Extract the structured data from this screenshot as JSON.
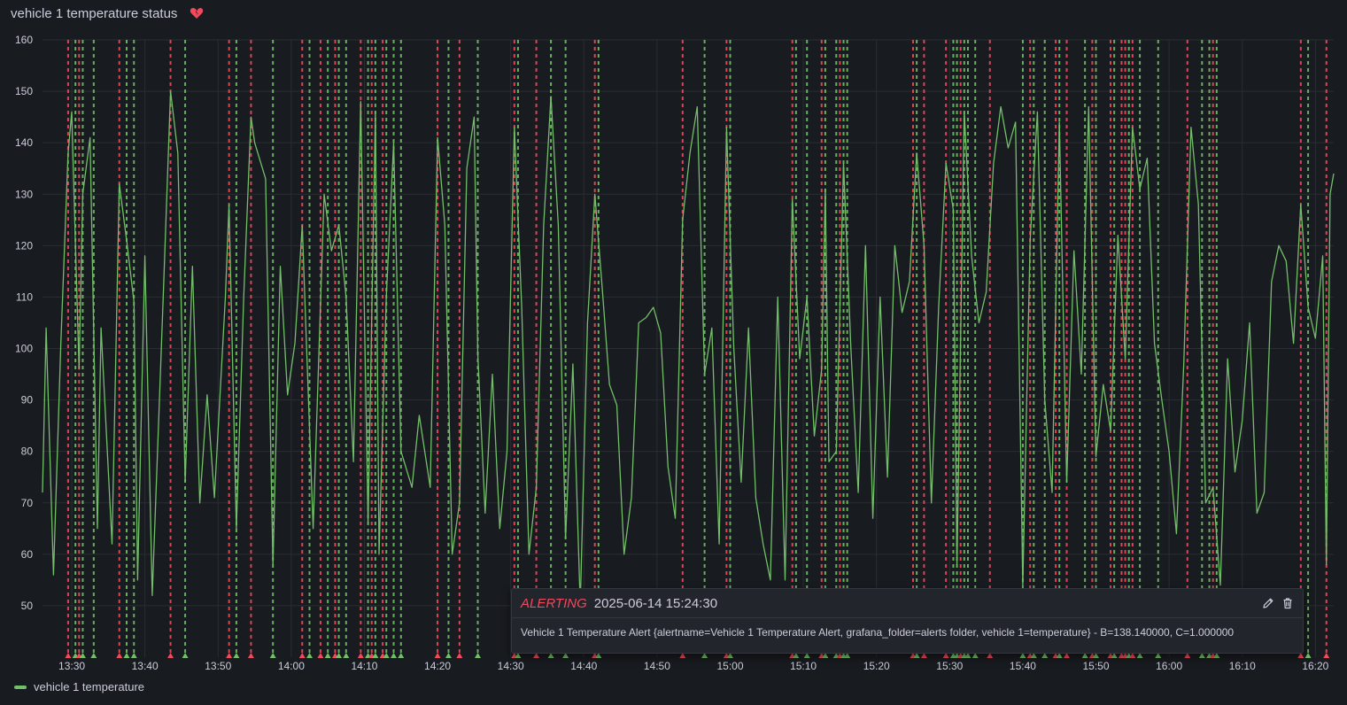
{
  "panel": {
    "title": "vehicle 1 temperature status",
    "status_icon": "broken-heart-icon",
    "status_color": "#f2495c"
  },
  "colors": {
    "series": "#73bf69",
    "alerting": "#f2495c",
    "normal": "#73bf69",
    "grid": "#2a2d33"
  },
  "legend": {
    "label": "vehicle 1 temperature"
  },
  "tooltip": {
    "state": "ALERTING",
    "time": "2025-06-14 15:24:30",
    "text": "Vehicle 1 Temperature Alert {alertname=Vehicle 1 Temperature Alert, grafana_folder=alerts folder, vehicle 1=temperature} - B=138.140000, C=1.000000",
    "edit_icon": "pencil-icon",
    "delete_icon": "trash-icon"
  },
  "chart_data": {
    "type": "line",
    "title": "vehicle 1 temperature status",
    "ylim": [
      40,
      160
    ],
    "yticks": [
      50,
      60,
      70,
      80,
      90,
      100,
      110,
      120,
      130,
      140,
      150,
      160
    ],
    "xlim": [
      "13:26:00",
      "16:22:30"
    ],
    "xticks": [
      "13:30",
      "13:40",
      "13:50",
      "14:00",
      "14:10",
      "14:20",
      "14:30",
      "14:40",
      "14:50",
      "15:00",
      "15:10",
      "15:20",
      "15:30",
      "15:40",
      "15:50",
      "16:00",
      "16:10",
      "16:20"
    ],
    "grid": true,
    "legend_position": "bottom-left",
    "series": [
      {
        "name": "vehicle 1 temperature",
        "color": "#73bf69",
        "values": [
          [
            "13:26:00",
            72
          ],
          [
            "13:26:30",
            104
          ],
          [
            "13:27:30",
            56
          ],
          [
            "13:28:30",
            101
          ],
          [
            "13:29:30",
            138
          ],
          [
            "13:30:00",
            146
          ],
          [
            "13:30:30",
            120
          ],
          [
            "13:31:00",
            96
          ],
          [
            "13:31:30",
            130
          ],
          [
            "13:32:30",
            141
          ],
          [
            "13:33:30",
            65
          ],
          [
            "13:34:00",
            104
          ],
          [
            "13:35:30",
            62
          ],
          [
            "13:36:30",
            132
          ],
          [
            "13:37:30",
            121
          ],
          [
            "13:38:30",
            109
          ],
          [
            "13:39:00",
            55
          ],
          [
            "13:40:00",
            118
          ],
          [
            "13:41:00",
            52
          ],
          [
            "13:42:30",
            110
          ],
          [
            "13:43:30",
            150
          ],
          [
            "13:44:30",
            138
          ],
          [
            "13:45:30",
            74
          ],
          [
            "13:46:30",
            116
          ],
          [
            "13:47:30",
            70
          ],
          [
            "13:48:30",
            91
          ],
          [
            "13:49:30",
            71
          ],
          [
            "13:51:00",
            110
          ],
          [
            "13:51:30",
            128
          ],
          [
            "13:52:30",
            65
          ],
          [
            "13:53:30",
            110
          ],
          [
            "13:54:30",
            145
          ],
          [
            "13:55:00",
            140
          ],
          [
            "13:56:30",
            133
          ],
          [
            "13:57:30",
            58
          ],
          [
            "13:58:30",
            116
          ],
          [
            "13:59:30",
            91
          ],
          [
            "14:00:30",
            101
          ],
          [
            "14:01:30",
            124
          ],
          [
            "14:02:00",
            104
          ],
          [
            "14:03:00",
            65
          ],
          [
            "14:04:30",
            130
          ],
          [
            "14:05:30",
            119
          ],
          [
            "14:06:30",
            124
          ],
          [
            "14:07:30",
            110
          ],
          [
            "14:08:30",
            78
          ],
          [
            "14:09:30",
            148
          ],
          [
            "14:10:30",
            66
          ],
          [
            "14:11:30",
            146
          ],
          [
            "14:12:00",
            60
          ],
          [
            "14:13:00",
            110
          ],
          [
            "14:14:00",
            140
          ],
          [
            "14:15:00",
            80
          ],
          [
            "14:16:30",
            73
          ],
          [
            "14:17:30",
            87
          ],
          [
            "14:19:00",
            73
          ],
          [
            "14:20:00",
            141
          ],
          [
            "14:21:00",
            124
          ],
          [
            "14:22:00",
            60
          ],
          [
            "14:23:00",
            70
          ],
          [
            "14:24:00",
            135
          ],
          [
            "14:25:00",
            145
          ],
          [
            "14:25:30",
            99
          ],
          [
            "14:26:30",
            68
          ],
          [
            "14:27:30",
            95
          ],
          [
            "14:28:30",
            65
          ],
          [
            "14:29:30",
            80
          ],
          [
            "14:30:30",
            143
          ],
          [
            "14:31:30",
            108
          ],
          [
            "14:32:30",
            60
          ],
          [
            "14:33:30",
            73
          ],
          [
            "14:34:30",
            124
          ],
          [
            "14:35:30",
            149
          ],
          [
            "14:36:30",
            124
          ],
          [
            "14:37:30",
            63
          ],
          [
            "14:38:30",
            97
          ],
          [
            "14:39:30",
            50
          ],
          [
            "14:40:30",
            105
          ],
          [
            "14:41:30",
            130
          ],
          [
            "14:42:30",
            112
          ],
          [
            "14:43:30",
            93
          ],
          [
            "14:44:30",
            89
          ],
          [
            "14:45:30",
            60
          ],
          [
            "14:46:30",
            71
          ],
          [
            "14:47:30",
            105
          ],
          [
            "14:48:30",
            106
          ],
          [
            "14:49:30",
            108
          ],
          [
            "14:50:30",
            103
          ],
          [
            "14:51:30",
            77
          ],
          [
            "14:52:30",
            67
          ],
          [
            "14:53:30",
            125
          ],
          [
            "14:54:30",
            138
          ],
          [
            "14:55:30",
            147
          ],
          [
            "14:56:30",
            95
          ],
          [
            "14:57:30",
            104
          ],
          [
            "14:58:30",
            62
          ],
          [
            "14:59:30",
            143
          ],
          [
            "15:00:30",
            100
          ],
          [
            "15:01:30",
            74
          ],
          [
            "15:02:30",
            104
          ],
          [
            "15:03:30",
            71
          ],
          [
            "15:04:30",
            62
          ],
          [
            "15:05:30",
            55
          ],
          [
            "15:06:30",
            110
          ],
          [
            "15:07:30",
            55
          ],
          [
            "15:08:30",
            129
          ],
          [
            "15:09:30",
            98
          ],
          [
            "15:10:30",
            110
          ],
          [
            "15:11:30",
            83
          ],
          [
            "15:12:30",
            96
          ],
          [
            "15:13:00",
            131
          ],
          [
            "15:13:30",
            78
          ],
          [
            "15:14:30",
            80
          ],
          [
            "15:15:30",
            136
          ],
          [
            "15:16:30",
            100
          ],
          [
            "15:17:30",
            72
          ],
          [
            "15:18:30",
            120
          ],
          [
            "15:19:30",
            67
          ],
          [
            "15:20:30",
            110
          ],
          [
            "15:21:30",
            75
          ],
          [
            "15:22:30",
            120
          ],
          [
            "15:23:30",
            107
          ],
          [
            "15:24:30",
            113
          ],
          [
            "15:25:30",
            138
          ],
          [
            "15:26:30",
            120
          ],
          [
            "15:27:30",
            70
          ],
          [
            "15:28:30",
            108
          ],
          [
            "15:29:30",
            136
          ],
          [
            "15:30:30",
            127
          ],
          [
            "15:31:00",
            58
          ],
          [
            "15:32:00",
            146
          ],
          [
            "15:33:00",
            118
          ],
          [
            "15:34:00",
            105
          ],
          [
            "15:35:00",
            111
          ],
          [
            "15:36:00",
            136
          ],
          [
            "15:37:00",
            147
          ],
          [
            "15:38:00",
            139
          ],
          [
            "15:39:00",
            144
          ],
          [
            "15:40:00",
            54
          ],
          [
            "15:41:00",
            121
          ],
          [
            "15:42:00",
            146
          ],
          [
            "15:43:00",
            90
          ],
          [
            "15:44:00",
            72
          ],
          [
            "15:45:00",
            144
          ],
          [
            "15:46:00",
            74
          ],
          [
            "15:47:00",
            119
          ],
          [
            "15:48:00",
            95
          ],
          [
            "15:49:00",
            147
          ],
          [
            "15:50:00",
            79
          ],
          [
            "15:51:00",
            93
          ],
          [
            "15:52:00",
            84
          ],
          [
            "15:53:00",
            122
          ],
          [
            "15:54:00",
            98
          ],
          [
            "15:55:00",
            143
          ],
          [
            "15:56:00",
            131
          ],
          [
            "15:57:00",
            137
          ],
          [
            "15:58:00",
            101
          ],
          [
            "15:59:00",
            90
          ],
          [
            "16:00:00",
            80
          ],
          [
            "16:01:00",
            64
          ],
          [
            "16:02:00",
            97
          ],
          [
            "16:03:00",
            143
          ],
          [
            "16:04:00",
            128
          ],
          [
            "16:05:00",
            70
          ],
          [
            "16:06:00",
            73
          ],
          [
            "16:07:00",
            54
          ],
          [
            "16:08:00",
            98
          ],
          [
            "16:09:00",
            76
          ],
          [
            "16:10:00",
            86
          ],
          [
            "16:11:00",
            105
          ],
          [
            "16:12:00",
            68
          ],
          [
            "16:13:00",
            72
          ],
          [
            "16:14:00",
            113
          ],
          [
            "16:15:00",
            120
          ],
          [
            "16:16:00",
            117
          ],
          [
            "16:17:00",
            101
          ],
          [
            "16:18:00",
            128
          ],
          [
            "16:19:00",
            108
          ],
          [
            "16:20:00",
            102
          ],
          [
            "16:21:00",
            118
          ],
          [
            "16:21:30",
            58
          ],
          [
            "16:22:00",
            130
          ],
          [
            "16:22:30",
            134
          ]
        ]
      }
    ],
    "annotations": [
      {
        "time": "13:29:30",
        "state": "alerting"
      },
      {
        "time": "13:30:30",
        "state": "normal"
      },
      {
        "time": "13:31:00",
        "state": "alerting"
      },
      {
        "time": "13:31:30",
        "state": "normal"
      },
      {
        "time": "13:33:00",
        "state": "normal"
      },
      {
        "time": "13:36:30",
        "state": "alerting"
      },
      {
        "time": "13:37:30",
        "state": "normal"
      },
      {
        "time": "13:38:30",
        "state": "normal"
      },
      {
        "time": "13:43:30",
        "state": "alerting"
      },
      {
        "time": "13:45:30",
        "state": "normal"
      },
      {
        "time": "13:51:30",
        "state": "alerting"
      },
      {
        "time": "13:52:30",
        "state": "normal"
      },
      {
        "time": "13:54:30",
        "state": "alerting"
      },
      {
        "time": "13:57:30",
        "state": "normal"
      },
      {
        "time": "14:01:30",
        "state": "alerting"
      },
      {
        "time": "14:02:30",
        "state": "normal"
      },
      {
        "time": "14:04:00",
        "state": "alerting"
      },
      {
        "time": "14:05:00",
        "state": "normal"
      },
      {
        "time": "14:06:00",
        "state": "alerting"
      },
      {
        "time": "14:06:30",
        "state": "normal"
      },
      {
        "time": "14:07:30",
        "state": "normal"
      },
      {
        "time": "14:09:30",
        "state": "alerting"
      },
      {
        "time": "14:10:30",
        "state": "normal"
      },
      {
        "time": "14:11:00",
        "state": "alerting"
      },
      {
        "time": "14:11:30",
        "state": "normal"
      },
      {
        "time": "14:12:30",
        "state": "alerting"
      },
      {
        "time": "14:13:00",
        "state": "normal"
      },
      {
        "time": "14:14:00",
        "state": "normal"
      },
      {
        "time": "14:15:00",
        "state": "normal"
      },
      {
        "time": "14:20:00",
        "state": "alerting"
      },
      {
        "time": "14:21:30",
        "state": "normal"
      },
      {
        "time": "14:23:00",
        "state": "alerting"
      },
      {
        "time": "14:25:30",
        "state": "normal"
      },
      {
        "time": "14:30:30",
        "state": "alerting"
      },
      {
        "time": "14:31:00",
        "state": "normal"
      },
      {
        "time": "14:33:30",
        "state": "alerting"
      },
      {
        "time": "14:35:30",
        "state": "normal"
      },
      {
        "time": "14:37:30",
        "state": "normal"
      },
      {
        "time": "14:41:30",
        "state": "alerting"
      },
      {
        "time": "14:42:00",
        "state": "normal"
      },
      {
        "time": "14:53:30",
        "state": "alerting"
      },
      {
        "time": "14:56:30",
        "state": "normal"
      },
      {
        "time": "14:59:30",
        "state": "alerting"
      },
      {
        "time": "15:00:00",
        "state": "normal"
      },
      {
        "time": "15:08:30",
        "state": "alerting"
      },
      {
        "time": "15:09:00",
        "state": "normal"
      },
      {
        "time": "15:10:30",
        "state": "normal"
      },
      {
        "time": "15:12:30",
        "state": "alerting"
      },
      {
        "time": "15:13:00",
        "state": "normal"
      },
      {
        "time": "15:14:30",
        "state": "normal"
      },
      {
        "time": "15:15:00",
        "state": "alerting"
      },
      {
        "time": "15:15:30",
        "state": "normal"
      },
      {
        "time": "15:16:00",
        "state": "normal"
      },
      {
        "time": "15:25:00",
        "state": "alerting"
      },
      {
        "time": "15:25:30",
        "state": "normal"
      },
      {
        "time": "15:26:30",
        "state": "alerting"
      },
      {
        "time": "15:29:30",
        "state": "alerting"
      },
      {
        "time": "15:30:30",
        "state": "normal"
      },
      {
        "time": "15:31:00",
        "state": "normal"
      },
      {
        "time": "15:31:30",
        "state": "alerting"
      },
      {
        "time": "15:32:00",
        "state": "normal"
      },
      {
        "time": "15:32:30",
        "state": "normal"
      },
      {
        "time": "15:33:30",
        "state": "normal"
      },
      {
        "time": "15:35:30",
        "state": "alerting"
      },
      {
        "time": "15:40:00",
        "state": "normal"
      },
      {
        "time": "15:41:00",
        "state": "alerting"
      },
      {
        "time": "15:41:30",
        "state": "normal"
      },
      {
        "time": "15:43:00",
        "state": "normal"
      },
      {
        "time": "15:44:30",
        "state": "alerting"
      },
      {
        "time": "15:45:00",
        "state": "normal"
      },
      {
        "time": "15:46:00",
        "state": "alerting"
      },
      {
        "time": "15:48:30",
        "state": "normal"
      },
      {
        "time": "15:49:30",
        "state": "alerting"
      },
      {
        "time": "15:50:00",
        "state": "normal"
      },
      {
        "time": "15:52:00",
        "state": "alerting"
      },
      {
        "time": "15:52:30",
        "state": "normal"
      },
      {
        "time": "15:53:30",
        "state": "alerting"
      },
      {
        "time": "15:54:00",
        "state": "alerting"
      },
      {
        "time": "15:54:30",
        "state": "normal"
      },
      {
        "time": "15:55:00",
        "state": "alerting"
      },
      {
        "time": "15:56:00",
        "state": "normal"
      },
      {
        "time": "15:58:30",
        "state": "normal"
      },
      {
        "time": "16:02:30",
        "state": "alerting"
      },
      {
        "time": "16:04:30",
        "state": "normal"
      },
      {
        "time": "16:05:30",
        "state": "normal"
      },
      {
        "time": "16:06:00",
        "state": "alerting"
      },
      {
        "time": "16:06:30",
        "state": "normal"
      },
      {
        "time": "16:18:00",
        "state": "alerting"
      },
      {
        "time": "16:19:00",
        "state": "normal"
      },
      {
        "time": "16:21:30",
        "state": "alerting"
      }
    ]
  }
}
